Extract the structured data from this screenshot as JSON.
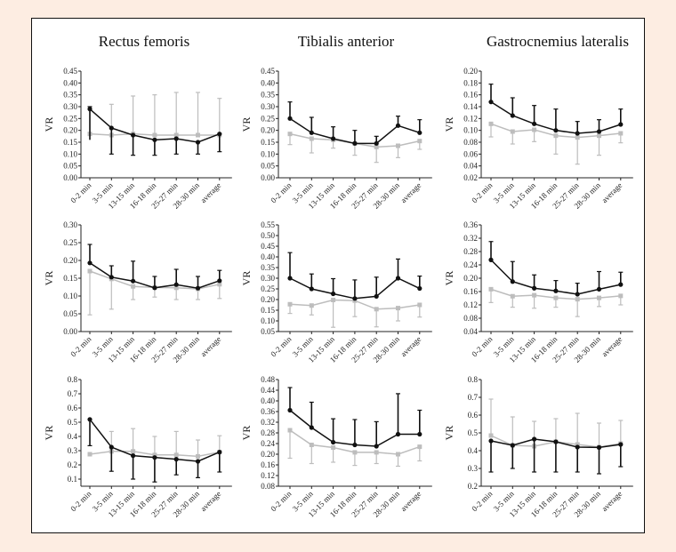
{
  "figure": {
    "background": "#fdede2",
    "frame_color": "#111111"
  },
  "colors": {
    "series_a": "#111111",
    "series_b": "#bdbdbd"
  },
  "chart_data": [
    {
      "type": "line",
      "title": "Rectus femoris",
      "ylabel": "VR",
      "categories": [
        "0-2 min",
        "3-5 min",
        "13-15 min",
        "16-18 min",
        "25-27 min",
        "28-30 min",
        "average"
      ],
      "ylim": [
        0.0,
        0.45
      ],
      "yticks": [
        "0.00",
        "0.05",
        "0.10",
        "0.15",
        "0.20",
        "0.25",
        "0.30",
        "0.35",
        "0.40",
        "0.45"
      ],
      "series": [
        {
          "name": "dark",
          "values": [
            0.29,
            0.21,
            0.18,
            0.16,
            0.165,
            0.15,
            0.185
          ],
          "err_low": [
            0.16,
            0.1,
            0.095,
            0.095,
            0.1,
            0.1,
            0.11
          ],
          "err_high": [
            0.3,
            0.21,
            0.18,
            0.16,
            0.165,
            0.15,
            0.185
          ]
        },
        {
          "name": "gray",
          "values": [
            0.185,
            0.18,
            0.185,
            0.18,
            0.18,
            0.18,
            0.18
          ],
          "err_low": [
            0.185,
            0.18,
            0.185,
            0.18,
            0.18,
            0.18,
            0.18
          ],
          "err_high": [
            0.3,
            0.31,
            0.345,
            0.35,
            0.36,
            0.36,
            0.335
          ]
        }
      ]
    },
    {
      "type": "line",
      "title": "Tibialis anterior",
      "ylabel": "VR",
      "categories": [
        "0-2 min",
        "3-5 min",
        "13-15 min",
        "16-18 min",
        "25-27 min",
        "28-30 min",
        "average"
      ],
      "ylim": [
        0.0,
        0.45
      ],
      "yticks": [
        "0.00",
        "0.05",
        "0.10",
        "0.15",
        "0.20",
        "0.25",
        "0.30",
        "0.35",
        "0.40",
        "0.45"
      ],
      "series": [
        {
          "name": "dark",
          "values": [
            0.25,
            0.19,
            0.165,
            0.145,
            0.145,
            0.22,
            0.19
          ],
          "err_low": [
            0.25,
            0.19,
            0.165,
            0.145,
            0.145,
            0.22,
            0.19
          ],
          "err_high": [
            0.32,
            0.255,
            0.215,
            0.2,
            0.175,
            0.26,
            0.245
          ]
        },
        {
          "name": "gray",
          "values": [
            0.185,
            0.165,
            0.16,
            0.145,
            0.13,
            0.135,
            0.155
          ],
          "err_low": [
            0.14,
            0.105,
            0.125,
            0.095,
            0.065,
            0.085,
            0.12
          ],
          "err_high": [
            0.185,
            0.165,
            0.16,
            0.145,
            0.13,
            0.135,
            0.155
          ]
        }
      ]
    },
    {
      "type": "line",
      "title": "Gastrocnemius lateralis",
      "ylabel": "VR",
      "categories": [
        "0-2 min",
        "3-5 min",
        "13-15 min",
        "16-18 min",
        "25-27 min",
        "28-30 min",
        "average"
      ],
      "ylim": [
        0.02,
        0.2
      ],
      "yticks": [
        "0.02",
        "0.04",
        "0.06",
        "0.08",
        "0.10",
        "0.12",
        "0.14",
        "0.16",
        "0.18",
        "0.20"
      ],
      "series": [
        {
          "name": "dark",
          "values": [
            0.148,
            0.125,
            0.111,
            0.1,
            0.095,
            0.098,
            0.11
          ],
          "err_low": [
            0.148,
            0.125,
            0.111,
            0.1,
            0.095,
            0.098,
            0.11
          ],
          "err_high": [
            0.178,
            0.155,
            0.142,
            0.136,
            0.115,
            0.118,
            0.136
          ]
        },
        {
          "name": "gray",
          "values": [
            0.111,
            0.098,
            0.101,
            0.091,
            0.088,
            0.091,
            0.095
          ],
          "err_low": [
            0.089,
            0.077,
            0.081,
            0.06,
            0.043,
            0.058,
            0.079
          ],
          "err_high": [
            0.111,
            0.098,
            0.101,
            0.091,
            0.088,
            0.091,
            0.095
          ]
        }
      ]
    },
    {
      "type": "line",
      "title": "",
      "ylabel": "VR",
      "categories": [
        "0-2 min",
        "3-5 min",
        "13-15 min",
        "16-18 min",
        "25-27 min",
        "28-30 min",
        "average"
      ],
      "ylim": [
        0.0,
        0.3
      ],
      "yticks": [
        "0.00",
        "0.05",
        "0.10",
        "0.15",
        "0.20",
        "0.25",
        "0.30"
      ],
      "series": [
        {
          "name": "dark",
          "values": [
            0.193,
            0.153,
            0.142,
            0.123,
            0.132,
            0.122,
            0.143
          ],
          "err_low": [
            0.193,
            0.153,
            0.142,
            0.123,
            0.132,
            0.122,
            0.143
          ],
          "err_high": [
            0.245,
            0.185,
            0.198,
            0.155,
            0.175,
            0.155,
            0.172
          ]
        },
        {
          "name": "gray",
          "values": [
            0.17,
            0.148,
            0.127,
            0.124,
            0.123,
            0.12,
            0.133
          ],
          "err_low": [
            0.047,
            0.063,
            0.09,
            0.097,
            0.09,
            0.09,
            0.093
          ],
          "err_high": [
            0.17,
            0.148,
            0.127,
            0.124,
            0.123,
            0.12,
            0.133
          ]
        }
      ]
    },
    {
      "type": "line",
      "title": "",
      "ylabel": "VR",
      "categories": [
        "0-2 min",
        "3-5 min",
        "13-15 min",
        "16-18 min",
        "25-27 min",
        "28-30 min",
        "average"
      ],
      "ylim": [
        0.05,
        0.55
      ],
      "yticks": [
        "0.05",
        "0.10",
        "0.15",
        "0.20",
        "0.25",
        "0.30",
        "0.35",
        "0.40",
        "0.45",
        "0.50",
        "0.55"
      ],
      "series": [
        {
          "name": "dark",
          "values": [
            0.3,
            0.25,
            0.227,
            0.205,
            0.215,
            0.3,
            0.252
          ],
          "err_low": [
            0.3,
            0.25,
            0.227,
            0.205,
            0.215,
            0.3,
            0.252
          ],
          "err_high": [
            0.42,
            0.32,
            0.298,
            0.292,
            0.305,
            0.39,
            0.31
          ]
        },
        {
          "name": "gray",
          "values": [
            0.178,
            0.172,
            0.198,
            0.195,
            0.155,
            0.16,
            0.175
          ],
          "err_low": [
            0.135,
            0.128,
            0.07,
            0.12,
            0.072,
            0.1,
            0.118
          ],
          "err_high": [
            0.178,
            0.172,
            0.198,
            0.195,
            0.155,
            0.16,
            0.175
          ]
        }
      ]
    },
    {
      "type": "line",
      "title": "",
      "ylabel": "VR",
      "categories": [
        "0-2 min",
        "3-5 min",
        "13-15 min",
        "16-18 min",
        "25-27 min",
        "28-30 min",
        "average"
      ],
      "ylim": [
        0.04,
        0.36
      ],
      "yticks": [
        "0.04",
        "0.08",
        "0.12",
        "0.16",
        "0.20",
        "0.24",
        "0.28",
        "0.32",
        "0.36"
      ],
      "series": [
        {
          "name": "dark",
          "values": [
            0.255,
            0.19,
            0.17,
            0.162,
            0.152,
            0.167,
            0.181
          ],
          "err_low": [
            0.255,
            0.19,
            0.17,
            0.162,
            0.152,
            0.167,
            0.181
          ],
          "err_high": [
            0.31,
            0.25,
            0.21,
            0.193,
            0.185,
            0.22,
            0.218
          ]
        },
        {
          "name": "gray",
          "values": [
            0.167,
            0.146,
            0.149,
            0.141,
            0.137,
            0.141,
            0.147
          ],
          "err_low": [
            0.127,
            0.113,
            0.11,
            0.113,
            0.085,
            0.115,
            0.12
          ],
          "err_high": [
            0.167,
            0.146,
            0.149,
            0.141,
            0.137,
            0.141,
            0.147
          ]
        }
      ]
    },
    {
      "type": "line",
      "title": "",
      "ylabel": "VR",
      "categories": [
        "0-2 min",
        "3-5 min",
        "13-15 min",
        "16-18 min",
        "25-27 min",
        "28-30 min",
        "average"
      ],
      "ylim": [
        0.05,
        0.8
      ],
      "yticks": [
        "0.1",
        "0.2",
        "0.3",
        "0.4",
        "0.5",
        "0.6",
        "0.7",
        "0.8"
      ],
      "series": [
        {
          "name": "dark",
          "values": [
            0.52,
            0.325,
            0.265,
            0.252,
            0.24,
            0.225,
            0.29
          ],
          "err_low": [
            0.335,
            0.155,
            0.1,
            0.08,
            0.13,
            0.11,
            0.15
          ],
          "err_high": [
            0.52,
            0.325,
            0.265,
            0.252,
            0.24,
            0.225,
            0.29
          ]
        },
        {
          "name": "gray",
          "values": [
            0.275,
            0.295,
            0.295,
            0.27,
            0.27,
            0.26,
            0.29
          ],
          "err_low": [
            0.275,
            0.295,
            0.295,
            0.27,
            0.27,
            0.26,
            0.29
          ],
          "err_high": [
            0.275,
            0.435,
            0.455,
            0.4,
            0.435,
            0.375,
            0.405
          ]
        }
      ]
    },
    {
      "type": "line",
      "title": "",
      "ylabel": "VR",
      "categories": [
        "0-2 min",
        "3-5 min",
        "13-15 min",
        "16-18 min",
        "25-27 min",
        "28-30 min",
        "average"
      ],
      "ylim": [
        0.08,
        0.48
      ],
      "yticks": [
        "0.08",
        "0.12",
        "0.16",
        "0.20",
        "0.24",
        "0.28",
        "0.32",
        "0.36",
        "0.40",
        "0.44",
        "0.48"
      ],
      "series": [
        {
          "name": "dark",
          "values": [
            0.365,
            0.3,
            0.245,
            0.235,
            0.23,
            0.275,
            0.275
          ],
          "err_low": [
            0.365,
            0.3,
            0.245,
            0.235,
            0.23,
            0.275,
            0.275
          ],
          "err_high": [
            0.45,
            0.395,
            0.333,
            0.33,
            0.322,
            0.427,
            0.365
          ]
        },
        {
          "name": "gray",
          "values": [
            0.29,
            0.235,
            0.225,
            0.207,
            0.207,
            0.2,
            0.228
          ],
          "err_low": [
            0.185,
            0.165,
            0.17,
            0.158,
            0.165,
            0.155,
            0.175
          ],
          "err_high": [
            0.29,
            0.235,
            0.225,
            0.207,
            0.207,
            0.2,
            0.228
          ]
        }
      ]
    },
    {
      "type": "line",
      "title": "",
      "ylabel": "VR",
      "categories": [
        "0-2 min",
        "3-5 min",
        "13-15 min",
        "16-18 min",
        "25-27 min",
        "28-30 min",
        "average"
      ],
      "ylim": [
        0.2,
        0.8
      ],
      "yticks": [
        "0.2",
        "0.3",
        "0.4",
        "0.5",
        "0.6",
        "0.7",
        "0.8"
      ],
      "series": [
        {
          "name": "dark",
          "values": [
            0.455,
            0.43,
            0.465,
            0.45,
            0.42,
            0.418,
            0.435
          ],
          "err_low": [
            0.28,
            0.3,
            0.28,
            0.28,
            0.28,
            0.27,
            0.31
          ],
          "err_high": [
            0.455,
            0.43,
            0.465,
            0.45,
            0.42,
            0.418,
            0.435
          ]
        },
        {
          "name": "gray",
          "values": [
            0.485,
            0.43,
            0.425,
            0.45,
            0.435,
            0.42,
            0.44
          ],
          "err_low": [
            0.485,
            0.43,
            0.425,
            0.45,
            0.435,
            0.42,
            0.44
          ],
          "err_high": [
            0.69,
            0.59,
            0.565,
            0.58,
            0.61,
            0.555,
            0.57
          ]
        }
      ]
    }
  ]
}
